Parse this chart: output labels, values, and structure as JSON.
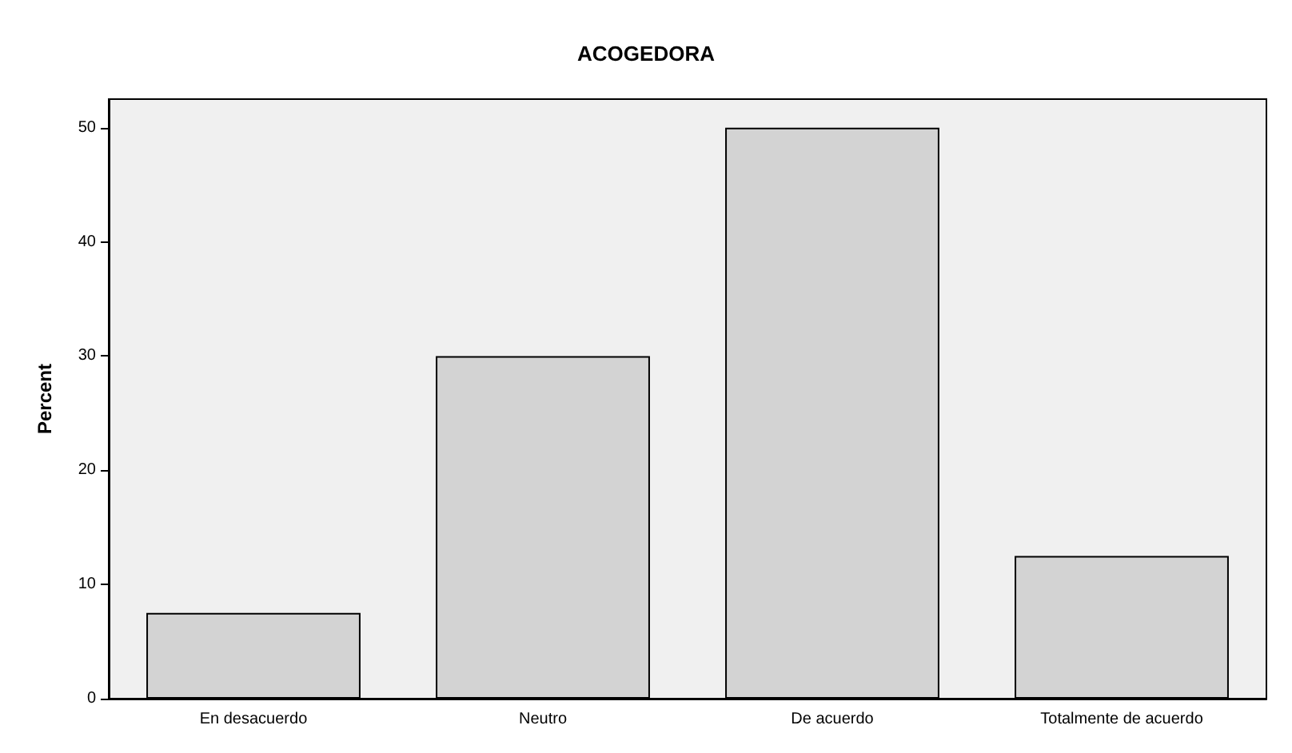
{
  "chart_data": {
    "type": "bar",
    "title": "ACOGEDORA",
    "ylabel": "Percent",
    "categories": [
      "En desacuerdo",
      "Neutro",
      "De acuerdo",
      "Totalmente de acuerdo"
    ],
    "values": [
      7.5,
      30,
      50,
      12.5
    ],
    "color": "#d3d3d3",
    "ylim": [
      0,
      52.5
    ],
    "yticks": [
      0,
      10,
      20,
      30,
      40,
      50
    ],
    "grid": false
  }
}
